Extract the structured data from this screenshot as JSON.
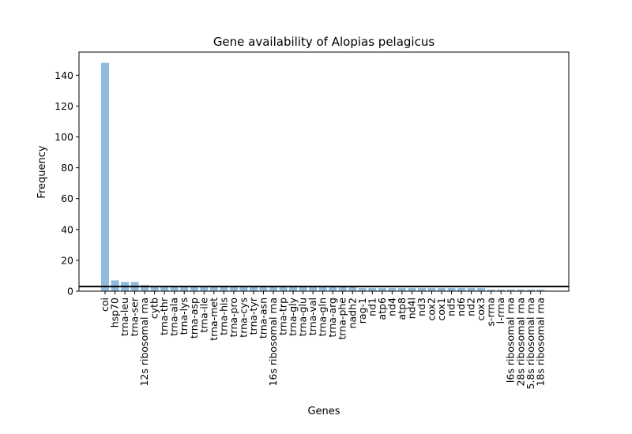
{
  "chart_data": {
    "type": "bar",
    "title": "Gene availability of Alopias pelagicus",
    "xlabel": "Genes",
    "ylabel": "Frequency",
    "ylim": [
      0,
      155
    ],
    "yticks": [
      0,
      20,
      40,
      60,
      80,
      100,
      120,
      140
    ],
    "grid": false,
    "bar_color": "#8fbcdc",
    "threshold_line": 3,
    "threshold_color": "#000000",
    "categories": [
      "coi",
      "hsp70",
      "trna-leu",
      "trna-ser",
      "12s ribosomal rna",
      "cytb",
      "trna-thr",
      "trna-ala",
      "trna-lys",
      "trna-asp",
      "trna-ile",
      "trna-met",
      "trna-his",
      "trna-pro",
      "trna-cys",
      "trna-tyr",
      "trna-asn",
      "16s ribosomal rna",
      "trna-trp",
      "trna-gly",
      "trna-glu",
      "trna-val",
      "trna-gln",
      "trna-arg",
      "trna-phe",
      "nadh2",
      "rag-1",
      "nd1",
      "atp6",
      "nd4",
      "atp8",
      "nd4l",
      "nd3",
      "cox2",
      "cox1",
      "nd5",
      "nd6",
      "nd2",
      "cox3",
      "s-rrna",
      "l-rrna",
      "l6s ribosomal rna",
      "28s ribosomal rna",
      "5.8s ribosomal rna",
      "18s ribosomal rna"
    ],
    "values": [
      148,
      7,
      6,
      6,
      4,
      3,
      3,
      3,
      3,
      3,
      3,
      3,
      3,
      3,
      3,
      3,
      3,
      3,
      3,
      3,
      3,
      3,
      3,
      3,
      3,
      3,
      2,
      2,
      2,
      2,
      2,
      2,
      2,
      2,
      2,
      2,
      2,
      2,
      2,
      1,
      1,
      1,
      1,
      1,
      1
    ]
  }
}
